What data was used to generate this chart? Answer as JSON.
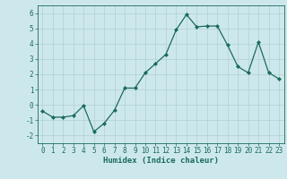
{
  "x": [
    0,
    1,
    2,
    3,
    4,
    5,
    6,
    7,
    8,
    9,
    10,
    11,
    12,
    13,
    14,
    15,
    16,
    17,
    18,
    19,
    20,
    21,
    22,
    23
  ],
  "y": [
    -0.4,
    -0.8,
    -0.8,
    -0.7,
    -0.05,
    -1.75,
    -1.2,
    -0.35,
    1.1,
    1.1,
    2.1,
    2.7,
    3.3,
    4.9,
    5.9,
    5.1,
    5.15,
    5.15,
    3.9,
    2.5,
    2.1,
    4.1,
    2.1,
    1.7
  ],
  "ylim": [
    -2.5,
    6.5
  ],
  "xlim": [
    -0.5,
    23.5
  ],
  "yticks": [
    -2,
    -1,
    0,
    1,
    2,
    3,
    4,
    5,
    6
  ],
  "xtick_labels": [
    "0",
    "1",
    "2",
    "3",
    "4",
    "5",
    "6",
    "7",
    "8",
    "9",
    "10",
    "11",
    "12",
    "13",
    "14",
    "15",
    "16",
    "17",
    "18",
    "19",
    "20",
    "21",
    "22",
    "23"
  ],
  "xlabel": "Humidex (Indice chaleur)",
  "line_color": "#1a6b5a",
  "marker": "D",
  "marker_size": 2.0,
  "bg_color": "#cde8ec",
  "grid_color": "#b0d0d4",
  "tick_fontsize": 5.5,
  "xlabel_fontsize": 6.5
}
